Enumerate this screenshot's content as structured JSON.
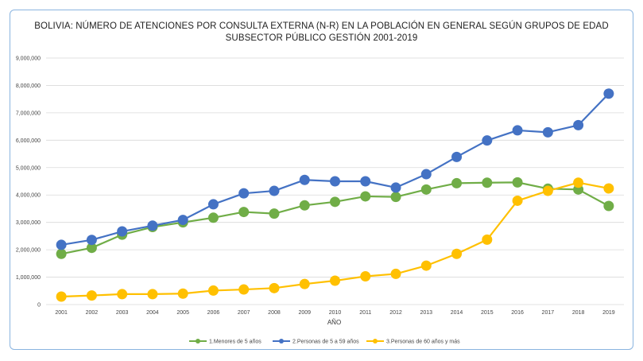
{
  "chart_data": {
    "type": "line",
    "title_line1": "BOLIVIA: NÚMERO DE ATENCIONES POR CONSULTA EXTERNA (N-R) EN LA POBLACIÓN EN GENERAL SEGÚN GRUPOS DE EDAD",
    "title_line2": "SUBSECTOR PÚBLICO GESTIÓN 2001-2019",
    "xlabel": "AÑO",
    "ylabel": "",
    "ylim": [
      0,
      9000000
    ],
    "y_ticks": [
      0,
      1000000,
      2000000,
      3000000,
      4000000,
      5000000,
      6000000,
      7000000,
      8000000,
      9000000
    ],
    "y_tick_labels": [
      "0",
      "1,000,000",
      "2,000,000",
      "3,000,000",
      "4,000,000",
      "5,000,000",
      "6,000,000",
      "7,000,000",
      "8,000,000",
      "9,000,000"
    ],
    "grid": "horizontal",
    "legend_position": "bottom",
    "categories": [
      "2001",
      "2002",
      "2003",
      "2004",
      "2005",
      "2006",
      "2007",
      "2008",
      "2009",
      "2010",
      "2011",
      "2012",
      "2013",
      "2014",
      "2015",
      "2016",
      "2017",
      "2018",
      "2019"
    ],
    "series": [
      {
        "name": "1.Menores de 5 años",
        "color": "#70ad47",
        "values": [
          1850000,
          2070000,
          2550000,
          2830000,
          3000000,
          3170000,
          3380000,
          3320000,
          3620000,
          3750000,
          3950000,
          3930000,
          4200000,
          4430000,
          4450000,
          4460000,
          4230000,
          4200000,
          3600000
        ]
      },
      {
        "name": "2.Personas de 5 a 59 años",
        "color": "#4472c4",
        "values": [
          2180000,
          2360000,
          2670000,
          2880000,
          3090000,
          3660000,
          4060000,
          4150000,
          4550000,
          4500000,
          4500000,
          4270000,
          4760000,
          5390000,
          5990000,
          6360000,
          6290000,
          6550000,
          7700000
        ]
      },
      {
        "name": "3.Personas de 60 años y más",
        "color": "#ffc000",
        "values": [
          290000,
          330000,
          380000,
          380000,
          400000,
          510000,
          550000,
          600000,
          750000,
          870000,
          1030000,
          1120000,
          1420000,
          1850000,
          2370000,
          3790000,
          4150000,
          4450000,
          4240000
        ]
      }
    ]
  }
}
